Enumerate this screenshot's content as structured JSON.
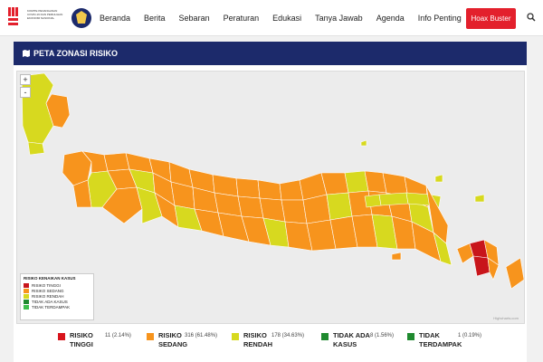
{
  "header": {
    "logo_text": "KOMITE PENANGANAN COVID-19 DAN PEMULIHAN EKONOMI NASIONAL",
    "nav": [
      "Beranda",
      "Berita",
      "Sebaran",
      "Peraturan",
      "Edukasi",
      "Tanya Jawab",
      "Agenda",
      "Info Penting"
    ],
    "hoax_button": "Hoax Buster",
    "search_icon": "search-icon"
  },
  "section": {
    "title": "PETA ZONASI RISIKO",
    "icon": "map-icon"
  },
  "map": {
    "zoom_in": "+",
    "zoom_out": "-",
    "credit": "Highcharts.com"
  },
  "legend": {
    "title": "RISIKO KENAIKAN KASUS",
    "items": [
      {
        "label": "RISIKO TINGGI",
        "color": "#c8151b"
      },
      {
        "label": "RISIKO SEDANG",
        "color": "#f7941d"
      },
      {
        "label": "RISIKO RENDAH",
        "color": "#d7d91f"
      },
      {
        "label": "TIDAK ADA KASUS",
        "color": "#1f8a2f"
      },
      {
        "label": "TIDAK TERDAMPAK",
        "color": "#3dbf4b"
      }
    ]
  },
  "summary": [
    {
      "line1": "RISIKO",
      "line2": "TINGGI",
      "value": "11 (2.14%)",
      "color": "#d8141c"
    },
    {
      "line1": "RISIKO",
      "line2": "SEDANG",
      "value": "316 (61.48%)",
      "color": "#f7941d"
    },
    {
      "line1": "RISIKO",
      "line2": "RENDAH",
      "value": "178 (34.63%)",
      "color": "#d7d91f"
    },
    {
      "line1": "TIDAK ADA",
      "line2": "KASUS",
      "value": "8 (1.56%)",
      "color": "#1f8a2f"
    },
    {
      "line1": "TIDAK",
      "line2": "TERDAMPAK",
      "value": "1 (0.19%)",
      "color": "#1f8a2f"
    }
  ],
  "colors": {
    "navy": "#1c2a6b",
    "hoax_red": "#e3202c",
    "map_border": "#ffffff"
  }
}
